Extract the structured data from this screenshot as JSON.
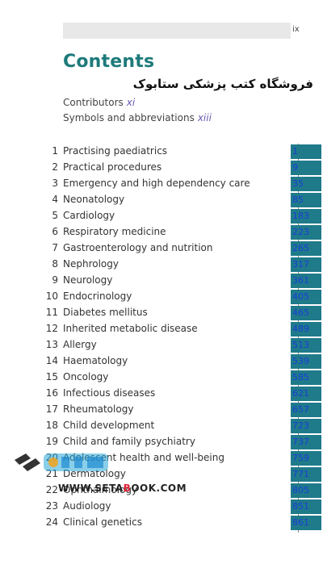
{
  "page_number": "ix",
  "title": "Contents",
  "publisher_note": "فروشگاه کتب پزشکی ستابوک",
  "front_matter": [
    {
      "label": "Contributors",
      "page": "xi"
    },
    {
      "label": "Symbols and abbreviations",
      "page": "xiii"
    }
  ],
  "chapters": [
    {
      "num": "1",
      "title": "Practising paediatrics",
      "page": "1"
    },
    {
      "num": "2",
      "title": "Practical procedures",
      "page": "9"
    },
    {
      "num": "3",
      "title": "Emergency and high dependency care",
      "page": "35"
    },
    {
      "num": "4",
      "title": "Neonatology",
      "page": "85"
    },
    {
      "num": "5",
      "title": "Cardiology",
      "page": "183"
    },
    {
      "num": "6",
      "title": "Respiratory medicine",
      "page": "223"
    },
    {
      "num": "7",
      "title": "Gastroenterology and nutrition",
      "page": "265"
    },
    {
      "num": "8",
      "title": "Nephrology",
      "page": "317"
    },
    {
      "num": "9",
      "title": "Neurology",
      "page": "361"
    },
    {
      "num": "10",
      "title": "Endocrinology",
      "page": "405"
    },
    {
      "num": "11",
      "title": "Diabetes mellitus",
      "page": "465"
    },
    {
      "num": "12",
      "title": "Inherited metabolic disease",
      "page": "489"
    },
    {
      "num": "13",
      "title": "Allergy",
      "page": "513"
    },
    {
      "num": "14",
      "title": "Haematology",
      "page": "539"
    },
    {
      "num": "15",
      "title": "Oncology",
      "page": "585"
    },
    {
      "num": "16",
      "title": "Infectious diseases",
      "page": "621"
    },
    {
      "num": "17",
      "title": "Rheumatology",
      "page": "657"
    },
    {
      "num": "18",
      "title": "Child development",
      "page": "723"
    },
    {
      "num": "19",
      "title": "Child and family psychiatry",
      "page": "737"
    },
    {
      "num": "20",
      "title": "Adolescent health and well-being",
      "page": "759"
    },
    {
      "num": "21",
      "title": "Dermatology",
      "page": "771"
    },
    {
      "num": "22",
      "title": "Ophthalmology",
      "page": "805"
    },
    {
      "num": "23",
      "title": "Audiology",
      "page": "851"
    },
    {
      "num": "24",
      "title": "Clinical genetics",
      "page": "861"
    }
  ],
  "watermark": {
    "site_a": "WWW.SETA",
    "site_b": "B",
    "site_c": "OOK.COM"
  },
  "colors": {
    "title": "#1e7a7a",
    "page_box": "#1f7a8a",
    "page_text": "#1a3fd6"
  }
}
